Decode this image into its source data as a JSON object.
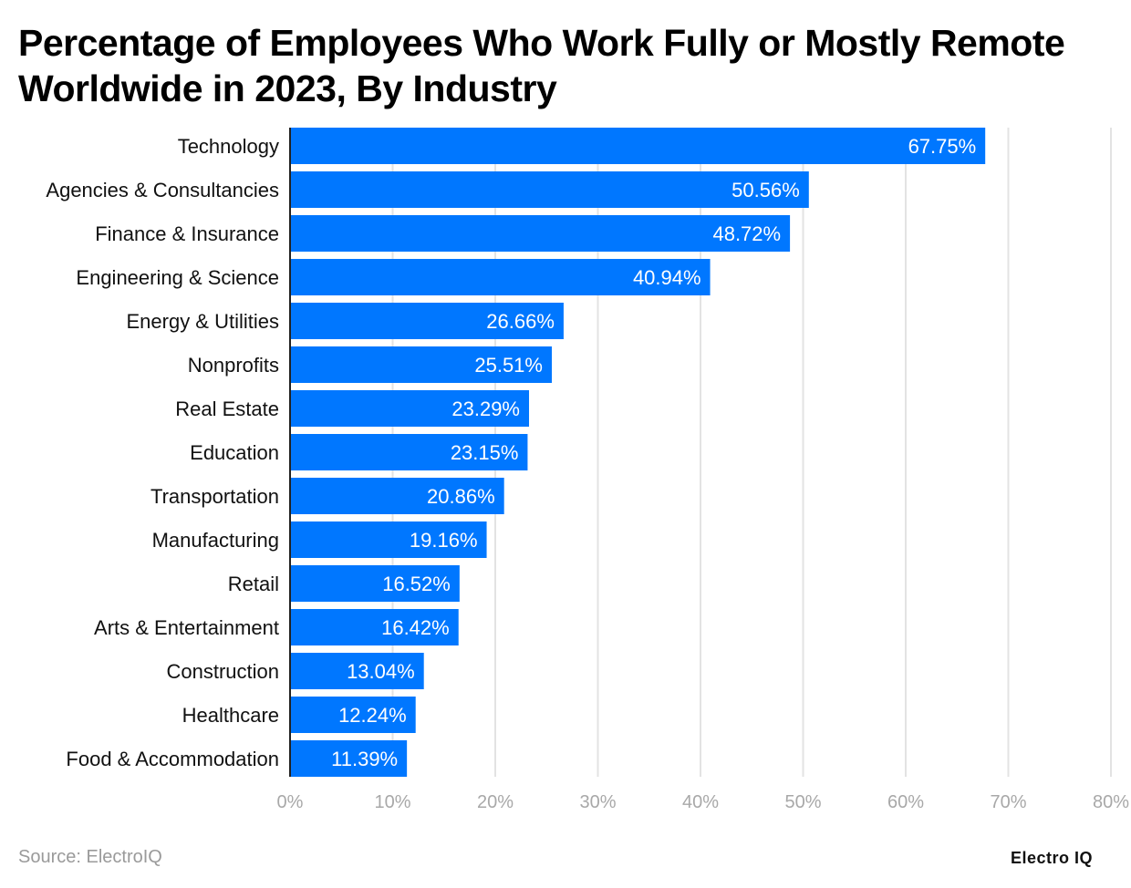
{
  "chart_data": {
    "type": "bar",
    "orientation": "horizontal",
    "title": "Percentage of Employees Who Work Fully or Mostly Remote Worldwide in 2023, By Industry",
    "categories": [
      "Technology",
      "Agencies & Consultancies",
      "Finance & Insurance",
      "Engineering & Science",
      "Energy & Utilities",
      "Nonprofits",
      "Real Estate",
      "Education",
      "Transportation",
      "Manufacturing",
      "Retail",
      "Arts & Entertainment",
      "Construction",
      "Healthcare",
      "Food & Accommodation"
    ],
    "values": [
      67.75,
      50.56,
      48.72,
      40.94,
      26.66,
      25.51,
      23.29,
      23.15,
      20.86,
      19.16,
      16.52,
      16.42,
      13.04,
      12.24,
      11.39
    ],
    "data_labels": [
      "67.75%",
      "50.56%",
      "48.72%",
      "40.94%",
      "26.66%",
      "25.51%",
      "23.29%",
      "23.15%",
      "20.86%",
      "19.16%",
      "16.52%",
      "16.42%",
      "13.04%",
      "12.24%",
      "11.39%"
    ],
    "xlim": [
      0,
      80
    ],
    "x_ticks": [
      0,
      10,
      20,
      30,
      40,
      50,
      60,
      70,
      80
    ],
    "x_tick_labels": [
      "0%",
      "10%",
      "20%",
      "30%",
      "40%",
      "50%",
      "60%",
      "70%",
      "80%"
    ],
    "grid": "vertical",
    "bar_color": "#0077ff",
    "grid_color": "#e3e3e3"
  },
  "source": "Source: ElectroIQ",
  "logo": "Electro IQ"
}
